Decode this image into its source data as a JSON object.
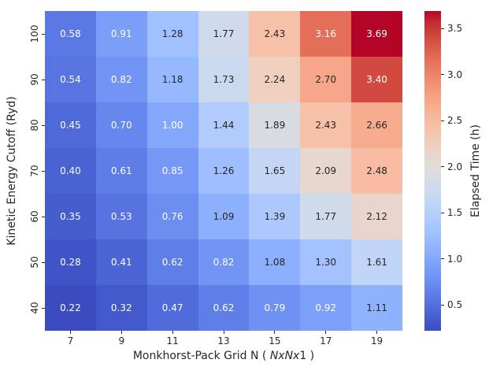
{
  "figure": {
    "background": "#ffffff",
    "text_color": "#262626"
  },
  "chart_data": {
    "type": "heatmap",
    "xlabel": "Monkhorst-Pack Grid N ( NxNx1 )",
    "xlabel_parts": {
      "prefix": "Monkhorst-Pack Grid N ( ",
      "italic": "NxNx",
      "suffix": "1 )"
    },
    "ylabel": "Kinetic Energy Cutoff (Ryd)",
    "x_categories": [
      "7",
      "9",
      "11",
      "13",
      "15",
      "17",
      "19"
    ],
    "y_categories": [
      "100",
      "90",
      "80",
      "70",
      "60",
      "50",
      "40"
    ],
    "values": [
      [
        0.58,
        0.91,
        1.28,
        1.77,
        2.43,
        3.16,
        3.69
      ],
      [
        0.54,
        0.82,
        1.18,
        1.73,
        2.24,
        2.7,
        3.4
      ],
      [
        0.45,
        0.7,
        1.0,
        1.44,
        1.89,
        2.43,
        2.66
      ],
      [
        0.4,
        0.61,
        0.85,
        1.26,
        1.65,
        2.09,
        2.48
      ],
      [
        0.35,
        0.53,
        0.76,
        1.09,
        1.39,
        1.77,
        2.12
      ],
      [
        0.28,
        0.41,
        0.62,
        0.82,
        1.08,
        1.3,
        1.61
      ],
      [
        0.22,
        0.32,
        0.47,
        0.62,
        0.79,
        0.92,
        1.11
      ]
    ],
    "value_format_decimals": 2,
    "vmin": 0.22,
    "vmax": 3.69,
    "grid": false,
    "colormap": "coolwarm",
    "colormap_anchors": [
      [
        59,
        76,
        192
      ],
      [
        68,
        90,
        204
      ],
      [
        77,
        104,
        215
      ],
      [
        87,
        117,
        225
      ],
      [
        98,
        130,
        234
      ],
      [
        108,
        142,
        241
      ],
      [
        119,
        154,
        247
      ],
      [
        130,
        165,
        251
      ],
      [
        141,
        176,
        254
      ],
      [
        152,
        185,
        255
      ],
      [
        163,
        194,
        255
      ],
      [
        174,
        201,
        253
      ],
      [
        184,
        208,
        249
      ],
      [
        194,
        213,
        244
      ],
      [
        204,
        217,
        238
      ],
      [
        213,
        219,
        230
      ],
      [
        221,
        221,
        221
      ],
      [
        229,
        216,
        209
      ],
      [
        236,
        211,
        197
      ],
      [
        241,
        204,
        185
      ],
      [
        245,
        196,
        173
      ],
      [
        247,
        187,
        160
      ],
      [
        247,
        177,
        148
      ],
      [
        247,
        166,
        135
      ],
      [
        244,
        154,
        123
      ],
      [
        241,
        141,
        111
      ],
      [
        236,
        127,
        99
      ],
      [
        229,
        112,
        88
      ],
      [
        222,
        96,
        77
      ],
      [
        213,
        80,
        66
      ],
      [
        203,
        62,
        56
      ],
      [
        192,
        40,
        47
      ],
      [
        180,
        4,
        38
      ]
    ],
    "annotation_colors": {
      "light": "#ffffff",
      "dark": "#262626"
    },
    "colorbar": {
      "label": "Elapsed Time (h)",
      "position": "right",
      "tick_values": [
        0.5,
        1.0,
        1.5,
        2.0,
        2.5,
        3.0,
        3.5
      ],
      "tick_labels": [
        "0.5",
        "1.0",
        "1.5",
        "2.0",
        "2.5",
        "3.0",
        "3.5"
      ]
    }
  }
}
